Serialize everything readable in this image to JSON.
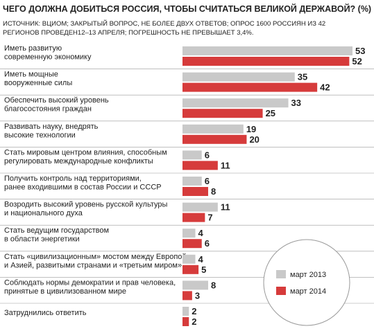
{
  "chart_data": {
    "type": "hbar",
    "title": "ЧЕГО ДОЛЖНА ДОБИТЬСЯ РОССИЯ, ЧТОБЫ СЧИТАТЬСЯ ВЕЛИКОЙ ДЕРЖАВОЙ? (%)",
    "subtitle": "ИСТОЧНИК: ВЦИОМ; ЗАКРЫТЫЙ ВОПРОС, НЕ БОЛЕЕ ДВУХ ОТВЕТОВ; ОПРОС 1600 РОССИЯН ИЗ 42 РЕГИОНОВ ПРОВЕДЕН12–13 АПРЕЛЯ; ПОГРЕШНОСТЬ НЕ ПРЕВЫШАЕТ 3,4%.",
    "categories": [
      "Иметь развитую\nсовременную экономику",
      "Иметь мощные\nвооруженные силы",
      "Обеспечить высокий уровень\nблагосостояния граждан",
      "Развивать науку, внедрять\nвысокие технологии",
      "Стать мировым центром влияния, способным\nрегулировать международные конфликты",
      "Получить контроль над территориями,\nранее входившими в состав России и СССР",
      "Возродить высокий уровень русской культуры\nи национального духа",
      "Стать ведущим государством\nв области энергетики",
      "Стать «цивилизационным» мостом между Европой\nи Азией, развитыми странами и «третьим миром»",
      "Соблюдать  нормы демократии и прав человека,\nпринятые в цивилизованном мире",
      "Затруднились ответить"
    ],
    "series": [
      {
        "name": "март 2013",
        "color": "#c9c9c9",
        "values": [
          53,
          35,
          33,
          19,
          6,
          6,
          11,
          4,
          4,
          8,
          2
        ]
      },
      {
        "name": "март 2014",
        "color": "#d63b3b",
        "values": [
          52,
          42,
          25,
          20,
          11,
          8,
          7,
          6,
          5,
          3,
          2
        ]
      }
    ]
  }
}
